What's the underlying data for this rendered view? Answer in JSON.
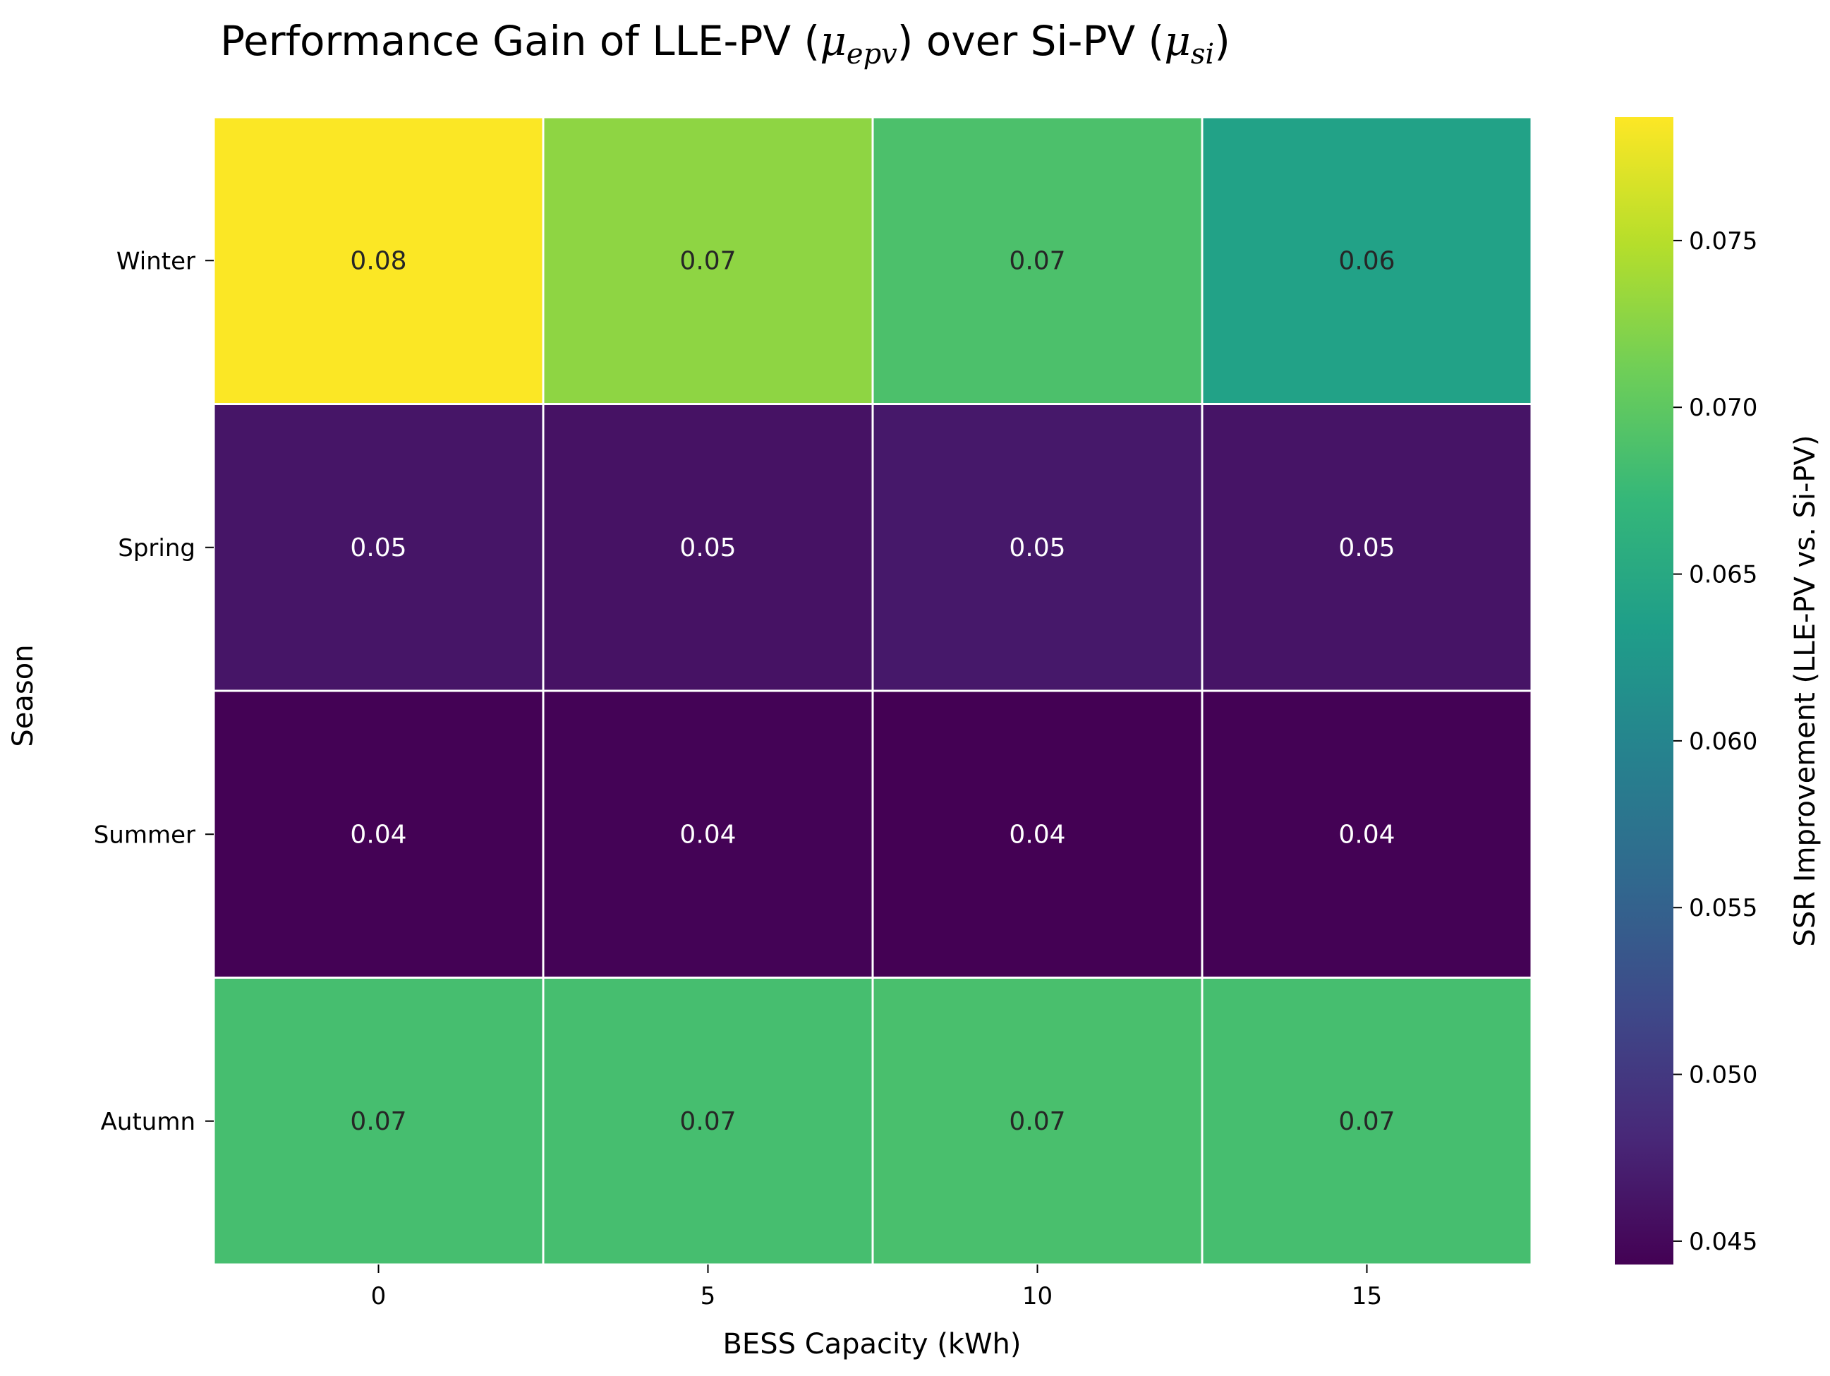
{
  "chart_data": {
    "type": "heatmap",
    "title": {
      "prefix": "Performance Gain of LLE-PV (",
      "mu1": "μ",
      "sub1": "epv",
      "middle": ") over Si-PV (",
      "mu2": "μ",
      "sub2": "si",
      "suffix": ")"
    },
    "xlabel": "BESS Capacity (kWh)",
    "ylabel": "Season",
    "x_categories": [
      "0",
      "5",
      "10",
      "15"
    ],
    "y_categories": [
      "Winter",
      "Spring",
      "Summer",
      "Autumn"
    ],
    "values": [
      [
        0.0786,
        0.0728,
        0.0688,
        0.064
      ],
      [
        0.0463,
        0.046,
        0.0466,
        0.0462
      ],
      [
        0.0444,
        0.0445,
        0.0443,
        0.0444
      ],
      [
        0.0684,
        0.0684,
        0.0686,
        0.0684
      ]
    ],
    "annotations": [
      [
        "0.08",
        "0.07",
        "0.07",
        "0.06"
      ],
      [
        "0.05",
        "0.05",
        "0.05",
        "0.05"
      ],
      [
        "0.04",
        "0.04",
        "0.04",
        "0.04"
      ],
      [
        "0.07",
        "0.07",
        "0.07",
        "0.07"
      ]
    ],
    "colormap": "viridis",
    "colorbar": {
      "label": "SSR Improvement (LLE-PV vs. Si-PV)",
      "vmin": 0.0443,
      "vmax": 0.0787,
      "ticks": [
        0.045,
        0.05,
        0.055,
        0.06,
        0.065,
        0.07,
        0.075
      ],
      "tick_labels": [
        "0.045",
        "0.050",
        "0.055",
        "0.060",
        "0.065",
        "0.070",
        "0.075"
      ]
    },
    "grid": true
  }
}
